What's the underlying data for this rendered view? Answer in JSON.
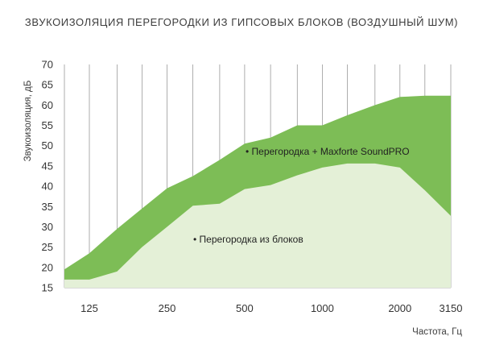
{
  "chart_data": {
    "type": "area",
    "title": "ЗВУКОИЗОЛЯЦИЯ ПЕРЕГОРОДКИ ИЗ ГИПСОВЫХ БЛОКОВ (ВОЗДУШНЫЙ ШУМ)",
    "xlabel": "Частота, Гц",
    "ylabel": "Звукоизоляция, дБ",
    "x_scale": "log",
    "x": [
      100,
      125,
      160,
      200,
      250,
      315,
      400,
      500,
      630,
      800,
      1000,
      1250,
      1600,
      2000,
      2500,
      3150
    ],
    "x_tick_labels": [
      "125",
      "250",
      "500",
      "1000",
      "2000",
      "3150"
    ],
    "x_tick_values": [
      125,
      250,
      500,
      1000,
      2000,
      3150
    ],
    "ylim": [
      15,
      70
    ],
    "y_ticks": [
      15,
      20,
      25,
      30,
      35,
      40,
      45,
      50,
      55,
      60,
      65,
      70
    ],
    "grid": "vertical lines at each frequency band",
    "series": [
      {
        "name": "Перегородка + Maxforte SoundPRO",
        "color": "#7dbd56",
        "values": [
          19.5,
          23.5,
          29.5,
          34.5,
          39.5,
          42.5,
          46.5,
          50.5,
          52,
          55,
          55,
          57.5,
          60,
          62,
          62.3,
          62.3
        ]
      },
      {
        "name": "Перегородка из блоков",
        "color": "#e4f0d7",
        "values": [
          17,
          17,
          19,
          25,
          30,
          35.2,
          35.7,
          39.3,
          40.3,
          42.7,
          44.6,
          45.6,
          45.6,
          44.6,
          39,
          32.7
        ]
      }
    ],
    "annotations": [
      {
        "text": "Перегородка + Maxforte SoundPRO",
        "series": 0
      },
      {
        "text": "Перегородка из блоков",
        "series": 1
      }
    ]
  }
}
